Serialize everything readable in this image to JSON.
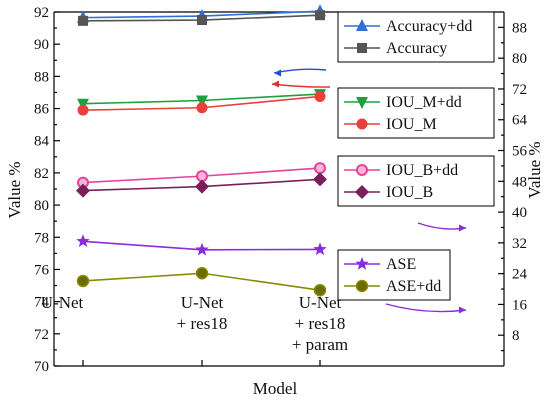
{
  "chart_data": {
    "type": "line",
    "categories": [
      [
        "U-Net"
      ],
      [
        "U-Net",
        "+ res18"
      ],
      [
        "U-Net",
        "+ res18",
        "+ param"
      ]
    ],
    "xlabel": "Model",
    "ylabel_left": "Value %",
    "ylabel_right": "Value %",
    "y_left": {
      "range": [
        70,
        92
      ],
      "ticks": [
        "70",
        "72",
        "74",
        "76",
        "78",
        "80",
        "82",
        "84",
        "86",
        "88",
        "90",
        "92"
      ]
    },
    "y_right": {
      "range": [
        0,
        92
      ],
      "ticks": [
        "8",
        "16",
        "24",
        "32",
        "40",
        "48",
        "56",
        "64",
        "72",
        "80",
        "88"
      ]
    },
    "series": [
      {
        "name": "Accuracy+dd",
        "axis": "left",
        "values": [
          91.65,
          91.75,
          92.05
        ],
        "color": "#2f6fd6",
        "marker": "triangle-up"
      },
      {
        "name": "Accuracy",
        "axis": "left",
        "values": [
          91.45,
          91.5,
          91.8
        ],
        "color": "#555555",
        "marker": "square"
      },
      {
        "name": "IOU_M+dd",
        "axis": "left",
        "values": [
          86.3,
          86.5,
          86.9
        ],
        "color": "#1fa040",
        "marker": "triangle-down"
      },
      {
        "name": "IOU_M",
        "axis": "left",
        "values": [
          85.9,
          86.05,
          86.75
        ],
        "color": "#e8403a",
        "marker": "circle"
      },
      {
        "name": "IOU_B+dd",
        "axis": "left",
        "values": [
          81.4,
          81.8,
          82.3
        ],
        "color": "#e8409b",
        "marker": "circle-open"
      },
      {
        "name": "IOU_B",
        "axis": "left",
        "values": [
          80.9,
          81.15,
          81.6
        ],
        "color": "#7a1f5a",
        "marker": "diamond"
      },
      {
        "name": "ASE",
        "axis": "right",
        "values": [
          32.4,
          30.2,
          30.3
        ],
        "color": "#8a2be2",
        "marker": "star"
      },
      {
        "name": "ASE+dd",
        "axis": "right",
        "values": [
          22.1,
          24.1,
          19.7
        ],
        "color": "#8a8a00",
        "marker": "circle-half"
      }
    ],
    "legend_groups": [
      [
        "Accuracy+dd",
        "Accuracy"
      ],
      [
        "IOU_M+dd",
        "IOU_M"
      ],
      [
        "IOU_B+dd",
        "IOU_B"
      ],
      [
        "ASE",
        "ASE+dd"
      ]
    ],
    "annotations": [
      {
        "kind": "arrow",
        "direction": "left",
        "color": "#1f4fd6",
        "target": "left-axis",
        "group": "Accuracy"
      },
      {
        "kind": "arrow",
        "direction": "left",
        "color": "#e03030",
        "target": "left-axis",
        "group": "IOU_M"
      },
      {
        "kind": "arrow",
        "direction": "right",
        "color": "#8a2be2",
        "target": "right-axis",
        "group": "IOU_B"
      },
      {
        "kind": "arrow",
        "direction": "right",
        "color": "#8a2be2",
        "target": "right-axis",
        "group": "ASE"
      }
    ],
    "grid": false,
    "legend_placement": "right"
  }
}
